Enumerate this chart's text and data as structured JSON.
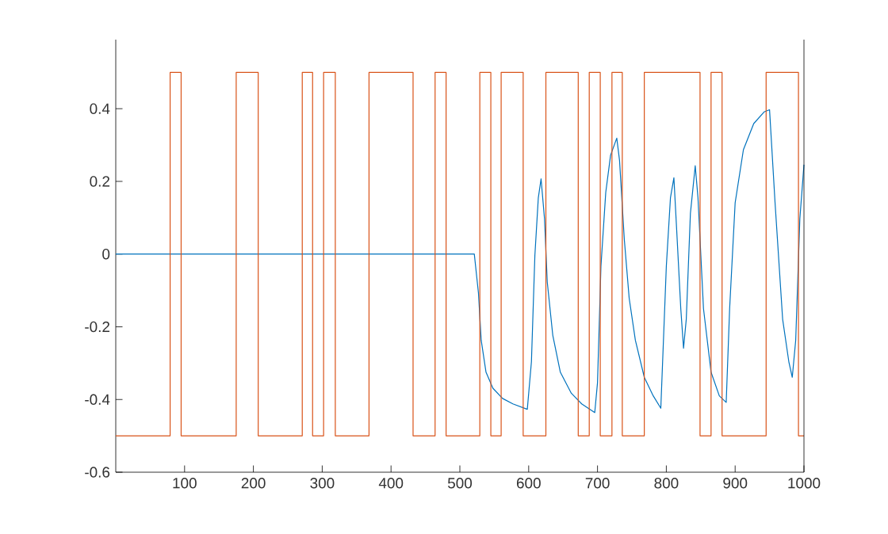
{
  "chart_data": {
    "type": "line",
    "xlim": [
      0,
      1000
    ],
    "ylim": [
      -0.6,
      0.59
    ],
    "xticks": [
      100,
      200,
      300,
      400,
      500,
      600,
      700,
      800,
      900,
      1000
    ],
    "yticks": [
      -0.6,
      -0.4,
      -0.2,
      0,
      0.2,
      0.4
    ],
    "grid": false,
    "series": [
      {
        "color": "#0072bd",
        "x": [
          0,
          521,
          527,
          531,
          538,
          548,
          562,
          577,
          598,
          604,
          609,
          614,
          618,
          623,
          627,
          635,
          646,
          662,
          677,
          696,
          700,
          705,
          712,
          719,
          728,
          732,
          739,
          746,
          755,
          768,
          781,
          792,
          800,
          806,
          811,
          815,
          821,
          825,
          829,
          835,
          842,
          846,
          854,
          865,
          877,
          887,
          892,
          900,
          912,
          927,
          942,
          950,
          958,
          969,
          978,
          983,
          988,
          994,
          1000
        ],
        "values": [
          0,
          0,
          -0.107,
          -0.237,
          -0.325,
          -0.369,
          -0.397,
          -0.412,
          -0.427,
          -0.296,
          -0.004,
          0.155,
          0.207,
          0.097,
          -0.077,
          -0.223,
          -0.325,
          -0.383,
          -0.412,
          -0.436,
          -0.354,
          -0.034,
          0.17,
          0.272,
          0.319,
          0.258,
          0.039,
          -0.121,
          -0.237,
          -0.339,
          -0.39,
          -0.424,
          -0.034,
          0.155,
          0.21,
          0.068,
          -0.15,
          -0.259,
          -0.179,
          0.112,
          0.243,
          0.155,
          -0.15,
          -0.325,
          -0.39,
          -0.408,
          -0.15,
          0.141,
          0.287,
          0.359,
          0.391,
          0.397,
          0.141,
          -0.179,
          -0.296,
          -0.339,
          -0.237,
          0.097,
          0.246
        ]
      },
      {
        "type": "step",
        "color": "#d95319",
        "x": [
          0,
          79,
          95,
          175,
          207,
          271,
          286,
          302,
          319,
          368,
          432,
          464,
          480,
          529,
          545,
          560,
          592,
          625,
          672,
          688,
          704,
          721,
          736,
          768,
          849,
          865,
          881,
          945,
          992,
          1000
        ],
        "values": [
          -0.5,
          0.5,
          -0.5,
          0.5,
          -0.5,
          0.5,
          -0.5,
          0.5,
          -0.5,
          0.5,
          -0.5,
          0.5,
          -0.5,
          0.5,
          -0.5,
          0.5,
          -0.5,
          0.5,
          -0.5,
          0.5,
          -0.5,
          0.5,
          -0.5,
          0.5,
          -0.5,
          0.5,
          -0.5,
          0.5,
          -0.5,
          -0.5
        ]
      }
    ]
  }
}
